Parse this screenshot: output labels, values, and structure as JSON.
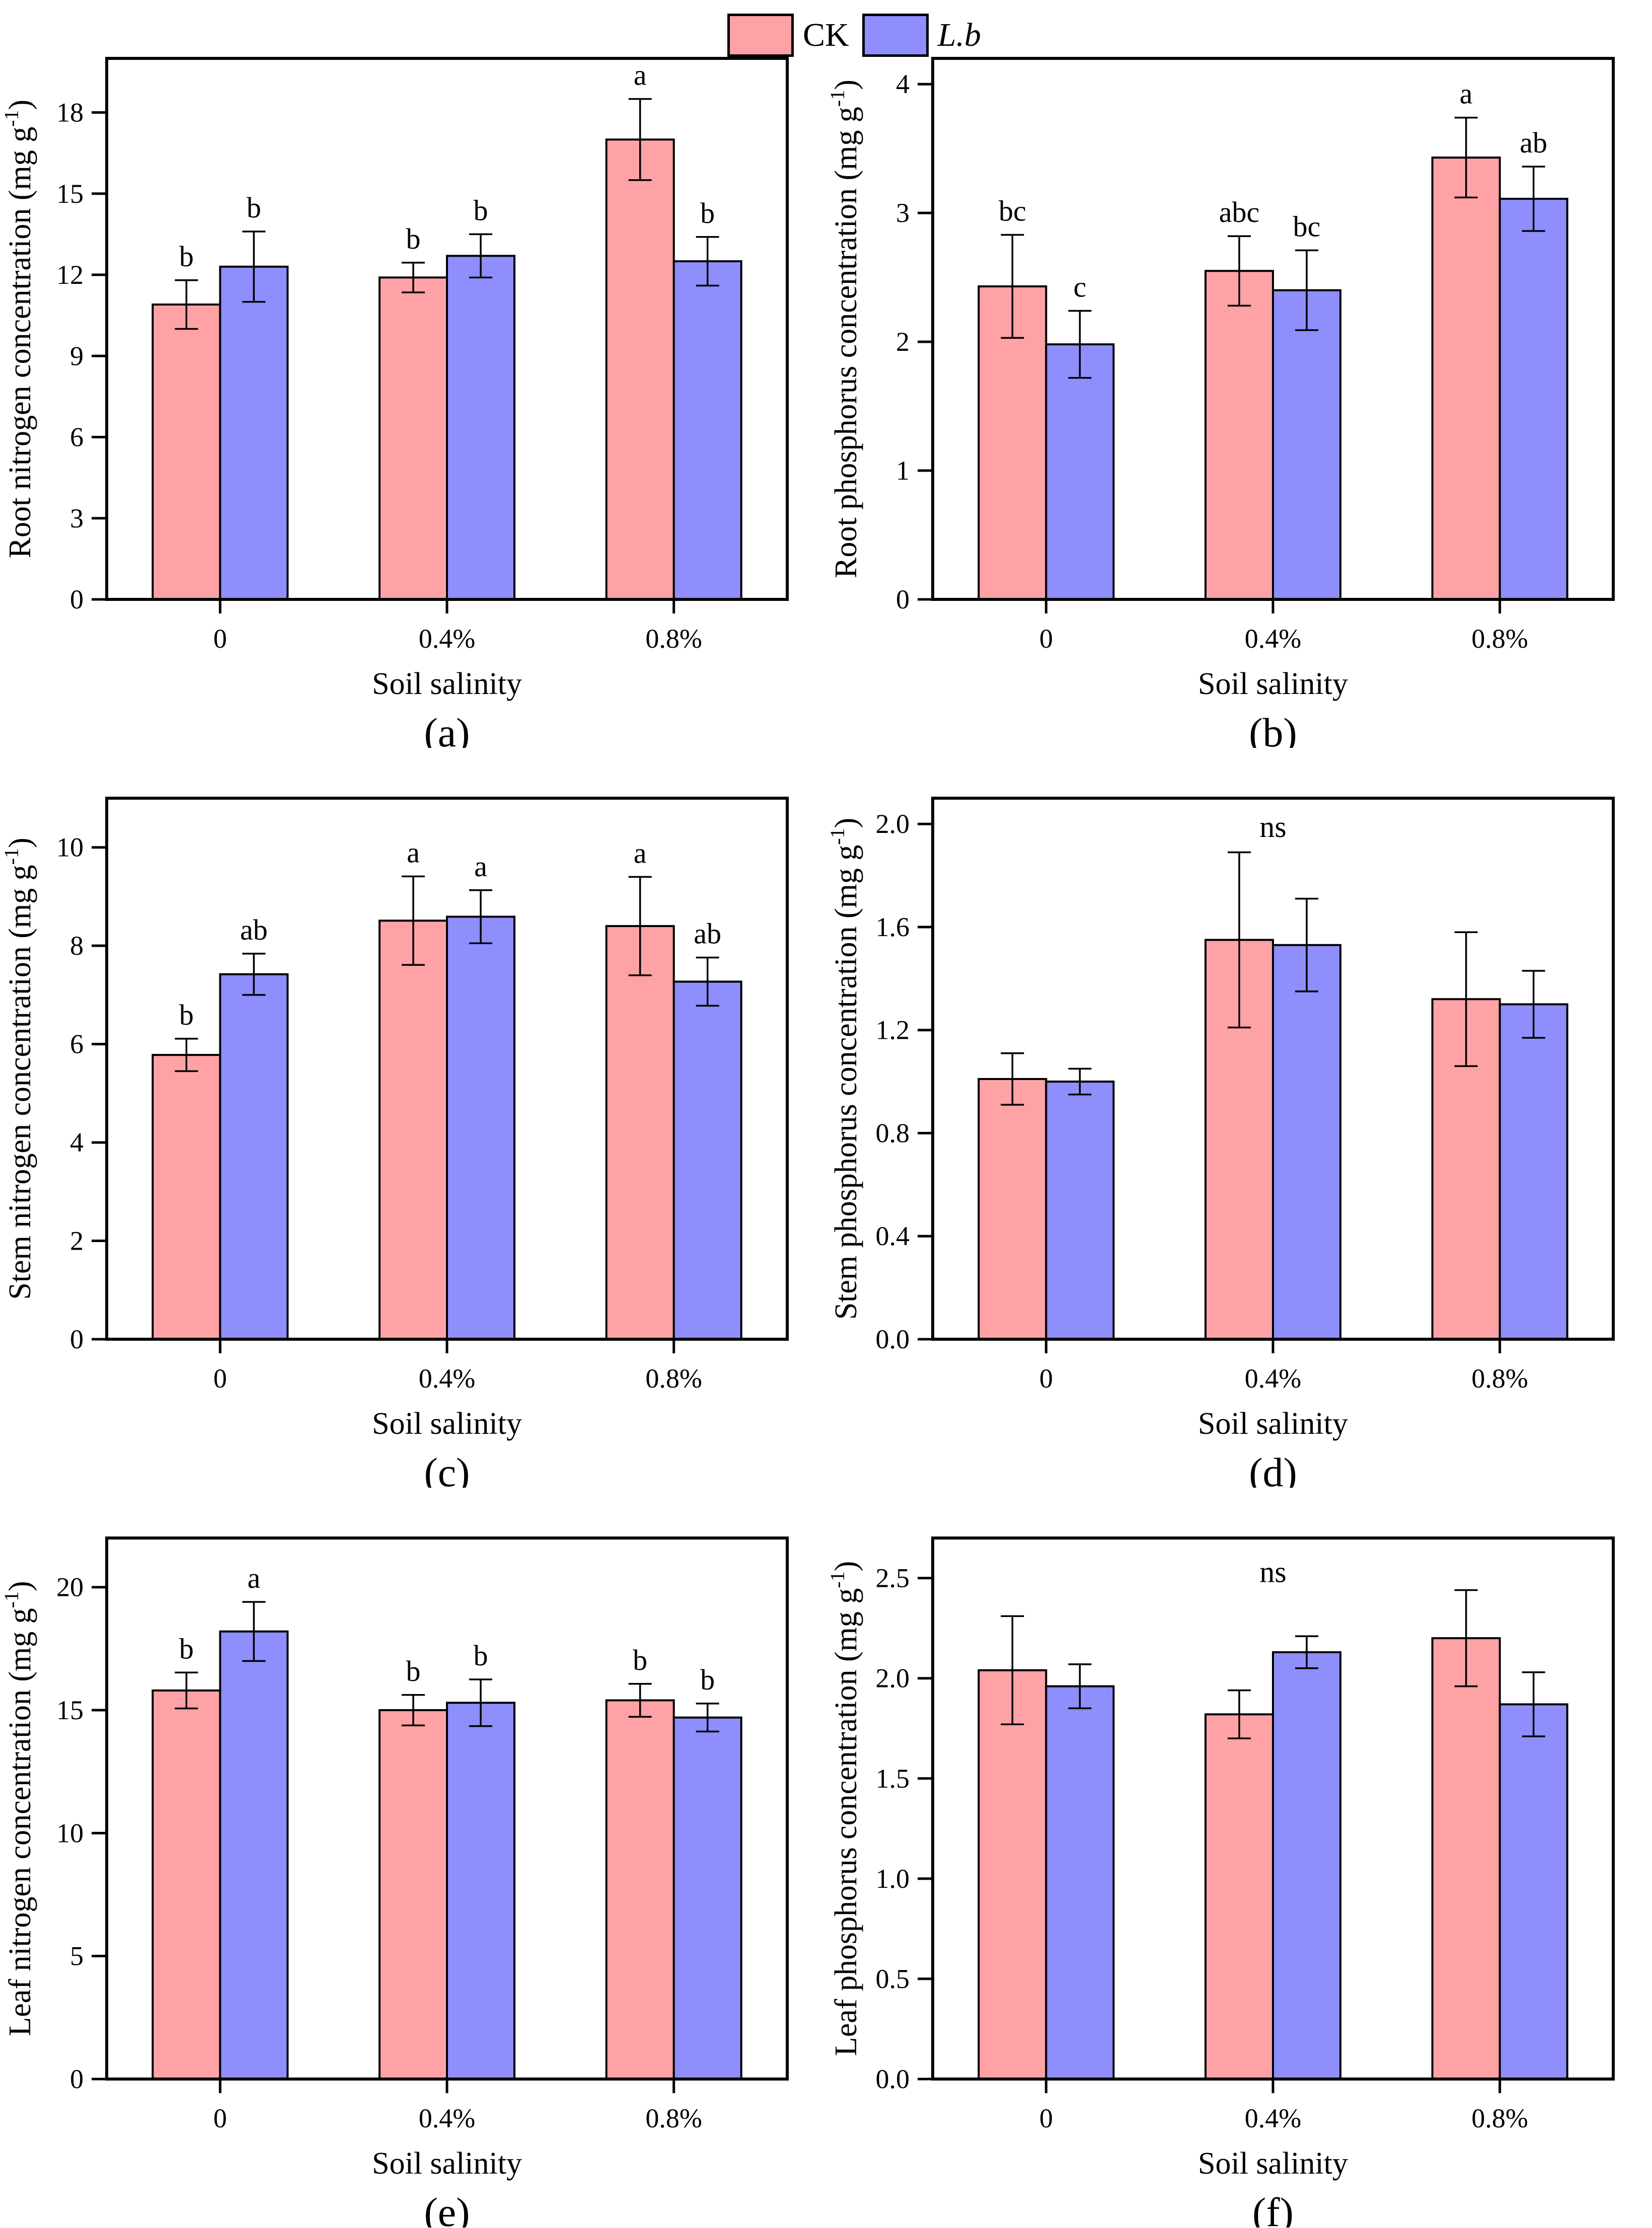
{
  "figure": {
    "series_colors": [
      "#FFA2A6",
      "#8E8EFD"
    ],
    "legend": {
      "items": [
        {
          "label": "CK",
          "color": "#FFA2A6",
          "italic": false
        },
        {
          "label": "L.b",
          "color": "#8E8EFD",
          "italic": true
        }
      ]
    }
  },
  "chart_data": [
    {
      "type": "bar",
      "panel_label": "(a)",
      "ylabel": {
        "main": "Root nitrogen concentration (mg g",
        "sup": "-1",
        "end": ")"
      },
      "xlabel": "Soil salinity",
      "categories": [
        "0",
        "0.4%",
        "0.8%"
      ],
      "ylim": [
        0,
        20
      ],
      "yticks": [
        0,
        3,
        6,
        9,
        12,
        15,
        18
      ],
      "ytick_format": "int",
      "grid": false,
      "series": [
        {
          "name": "CK",
          "values": [
            10.9,
            11.9,
            17.0
          ],
          "errors": [
            0.9,
            0.55,
            1.5
          ],
          "letters": [
            "b",
            "b",
            "a"
          ]
        },
        {
          "name": "L.b",
          "values": [
            12.3,
            12.7,
            12.5
          ],
          "errors": [
            1.3,
            0.8,
            0.9
          ],
          "letters": [
            "b",
            "b",
            "b"
          ]
        }
      ],
      "annotation": null
    },
    {
      "type": "bar",
      "panel_label": "(b)",
      "ylabel": {
        "main": "Root phosphorus concentration (mg g",
        "sup": "-1",
        "end": ")"
      },
      "xlabel": "Soil salinity",
      "categories": [
        "0",
        "0.4%",
        "0.8%"
      ],
      "ylim": [
        0,
        4.2
      ],
      "yticks": [
        0,
        1,
        2,
        3,
        4
      ],
      "ytick_format": "int",
      "grid": false,
      "series": [
        {
          "name": "CK",
          "values": [
            2.43,
            2.55,
            3.43
          ],
          "errors": [
            0.4,
            0.27,
            0.31
          ],
          "letters": [
            "bc",
            "abc",
            "a"
          ]
        },
        {
          "name": "L.b",
          "values": [
            1.98,
            2.4,
            3.11
          ],
          "errors": [
            0.26,
            0.31,
            0.25
          ],
          "letters": [
            "c",
            "bc",
            "ab"
          ]
        }
      ],
      "annotation": null
    },
    {
      "type": "bar",
      "panel_label": "(c)",
      "ylabel": {
        "main": "Stem nitrogen concentration (mg g",
        "sup": "-1",
        "end": ")"
      },
      "xlabel": "Soil salinity",
      "categories": [
        "0",
        "0.4%",
        "0.8%"
      ],
      "ylim": [
        0,
        11
      ],
      "yticks": [
        0,
        2,
        4,
        6,
        8,
        10
      ],
      "ytick_format": "int",
      "grid": false,
      "series": [
        {
          "name": "CK",
          "values": [
            5.78,
            8.51,
            8.4
          ],
          "errors": [
            0.33,
            0.9,
            1.0
          ],
          "letters": [
            "b",
            "a",
            "a"
          ]
        },
        {
          "name": "L.b",
          "values": [
            7.42,
            8.59,
            7.27
          ],
          "errors": [
            0.42,
            0.54,
            0.49
          ],
          "letters": [
            "ab",
            "a",
            "ab"
          ]
        }
      ],
      "annotation": null
    },
    {
      "type": "bar",
      "panel_label": "(d)",
      "ylabel": {
        "main": "Stem phosphorus concentration (mg g",
        "sup": "-1",
        "end": ")"
      },
      "xlabel": "Soil salinity",
      "categories": [
        "0",
        "0.4%",
        "0.8%"
      ],
      "ylim": [
        0,
        2.1
      ],
      "yticks": [
        0.0,
        0.4,
        0.8,
        1.2,
        1.6,
        2.0
      ],
      "ytick_format": "1dp",
      "grid": false,
      "series": [
        {
          "name": "CK",
          "values": [
            1.01,
            1.55,
            1.32
          ],
          "errors": [
            0.1,
            0.34,
            0.26
          ],
          "letters": [
            "",
            "",
            ""
          ]
        },
        {
          "name": "L.b",
          "values": [
            1.0,
            1.53,
            1.3
          ],
          "errors": [
            0.05,
            0.18,
            0.13
          ],
          "letters": [
            "",
            "",
            ""
          ]
        }
      ],
      "annotation": {
        "text": "ns",
        "y": 1.95
      }
    },
    {
      "type": "bar",
      "panel_label": "(e)",
      "ylabel": {
        "main": "Leaf nitrogen concentration (mg g",
        "sup": "-1",
        "end": ")"
      },
      "xlabel": "Soil salinity",
      "categories": [
        "0",
        "0.4%",
        "0.8%"
      ],
      "ylim": [
        0,
        22
      ],
      "yticks": [
        0,
        5,
        10,
        15,
        20
      ],
      "ytick_format": "int",
      "grid": false,
      "series": [
        {
          "name": "CK",
          "values": [
            15.8,
            15.0,
            15.4
          ],
          "errors": [
            0.73,
            0.62,
            0.67
          ],
          "letters": [
            "b",
            "b",
            "b"
          ]
        },
        {
          "name": "L.b",
          "values": [
            18.2,
            15.3,
            14.7
          ],
          "errors": [
            1.2,
            0.95,
            0.57
          ],
          "letters": [
            "a",
            "b",
            "b"
          ]
        }
      ],
      "annotation": null
    },
    {
      "type": "bar",
      "panel_label": "(f)",
      "ylabel": {
        "main": "Leaf phosphorus concentration (mg g",
        "sup": "-1",
        "end": ")"
      },
      "xlabel": "Soil salinity",
      "categories": [
        "0",
        "0.4%",
        "0.8%"
      ],
      "ylim": [
        0,
        2.7
      ],
      "yticks": [
        0.0,
        0.5,
        1.0,
        1.5,
        2.0,
        2.5
      ],
      "ytick_format": "1dp",
      "grid": false,
      "series": [
        {
          "name": "CK",
          "values": [
            2.04,
            1.82,
            2.2
          ],
          "errors": [
            0.27,
            0.12,
            0.24
          ],
          "letters": [
            "",
            "",
            ""
          ]
        },
        {
          "name": "L.b",
          "values": [
            1.96,
            2.13,
            1.87
          ],
          "errors": [
            0.11,
            0.08,
            0.16
          ],
          "letters": [
            "",
            "",
            ""
          ]
        }
      ],
      "annotation": {
        "text": "ns",
        "y": 2.48
      }
    }
  ]
}
